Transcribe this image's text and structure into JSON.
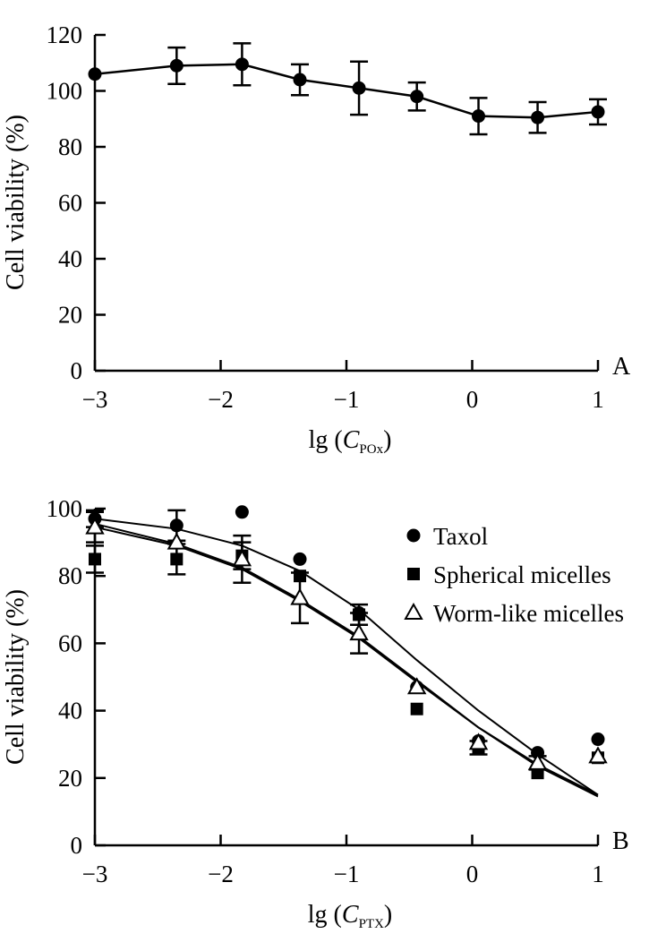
{
  "chart_data": [
    {
      "panel": "A",
      "type": "line",
      "xlabel_prefix": "lg (",
      "xlabel_var": "C",
      "xlabel_sub": "POx",
      "xlabel_suffix": ")",
      "ylabel": "Cell viability (%)",
      "xlim": [
        -3,
        1
      ],
      "ylim": [
        0,
        120
      ],
      "xticks": [
        -3,
        -2,
        -1,
        0,
        1
      ],
      "xtick_labels": [
        "−3",
        "−2",
        "−1",
        "0",
        "1"
      ],
      "yticks": [
        0,
        20,
        40,
        60,
        80,
        100,
        120
      ],
      "ytick_labels": [
        "0",
        "20",
        "40",
        "60",
        "80",
        "100",
        "120"
      ],
      "series": [
        {
          "name": "POx",
          "marker": "circle",
          "x": [
            -3.0,
            -2.35,
            -1.83,
            -1.37,
            -0.9,
            -0.44,
            0.05,
            0.52,
            1.0
          ],
          "y": [
            106,
            109,
            109.5,
            104,
            101,
            98,
            91,
            90.5,
            92.5
          ],
          "err": [
            0,
            6.5,
            7.5,
            5.5,
            9.5,
            5,
            6.5,
            5.5,
            4.5
          ]
        }
      ]
    },
    {
      "panel": "B",
      "type": "scatter",
      "xlabel_prefix": "lg (",
      "xlabel_var": "C",
      "xlabel_sub": "PTX",
      "xlabel_suffix": ")",
      "ylabel": "Cell viability (%)",
      "xlim": [
        -3,
        1
      ],
      "ylim": [
        0,
        100
      ],
      "xticks": [
        -3,
        -2,
        -1,
        0,
        1
      ],
      "xtick_labels": [
        "−3",
        "−2",
        "−1",
        "0",
        "1"
      ],
      "yticks": [
        0,
        20,
        40,
        60,
        80,
        100
      ],
      "ytick_labels": [
        "0",
        "20",
        "40",
        "60",
        "80",
        "100"
      ],
      "legend_position": "top-right",
      "series": [
        {
          "name": "Taxol",
          "marker": "circle",
          "x": [
            -3.0,
            -2.35,
            -1.83,
            -1.37,
            -0.9,
            -0.44,
            0.05,
            0.52,
            1.0
          ],
          "y": [
            97,
            95,
            99,
            85,
            69,
            47,
            31,
            27.5,
            31.5
          ],
          "err": [
            2.5,
            4.5,
            0,
            0,
            0,
            0,
            0,
            0,
            0
          ],
          "fit_x": [
            -3.0,
            -2.35,
            -1.83,
            -1.37,
            -0.9,
            -0.44,
            0.05,
            0.52,
            1.0
          ],
          "fit_y": [
            97,
            94,
            89,
            81.5,
            70,
            55,
            40,
            27,
            15
          ]
        },
        {
          "name": "Spherical micelles",
          "marker": "square",
          "x": [
            -3.0,
            -2.35,
            -1.83,
            -1.37,
            -0.9,
            -0.44,
            0.05,
            0.52,
            1.0
          ],
          "y": [
            85,
            85,
            86,
            80,
            68.5,
            40.5,
            29,
            21.5,
            26
          ],
          "err": [
            4,
            4.5,
            4,
            0,
            3,
            0,
            2,
            0,
            0
          ],
          "fit_x": [
            -3.0,
            -2.35,
            -1.83,
            -1.37,
            -0.9,
            -0.44,
            0.05,
            0.52,
            1.0
          ],
          "fit_y": [
            95.5,
            89.5,
            82.5,
            73,
            62,
            49,
            35,
            23.5,
            14.5
          ]
        },
        {
          "name": "Worm-like micelles",
          "marker": "triangle",
          "x": [
            -3.0,
            -2.35,
            -1.83,
            -1.37,
            -0.9,
            -0.44,
            0.05,
            0.52,
            1.0
          ],
          "y": [
            94.5,
            90,
            85,
            73.5,
            63,
            47,
            30.5,
            24.5,
            26.5
          ],
          "err": [
            4.5,
            0,
            7,
            7.5,
            6,
            0,
            0,
            2,
            0
          ],
          "fit_x": [
            -3.0,
            -2.35,
            -1.83,
            -1.37,
            -0.9,
            -0.44,
            0.05,
            0.52,
            1.0
          ],
          "fit_y": [
            94.5,
            89,
            82,
            72.5,
            61.5,
            48.5,
            35,
            24,
            15
          ]
        }
      ]
    }
  ]
}
